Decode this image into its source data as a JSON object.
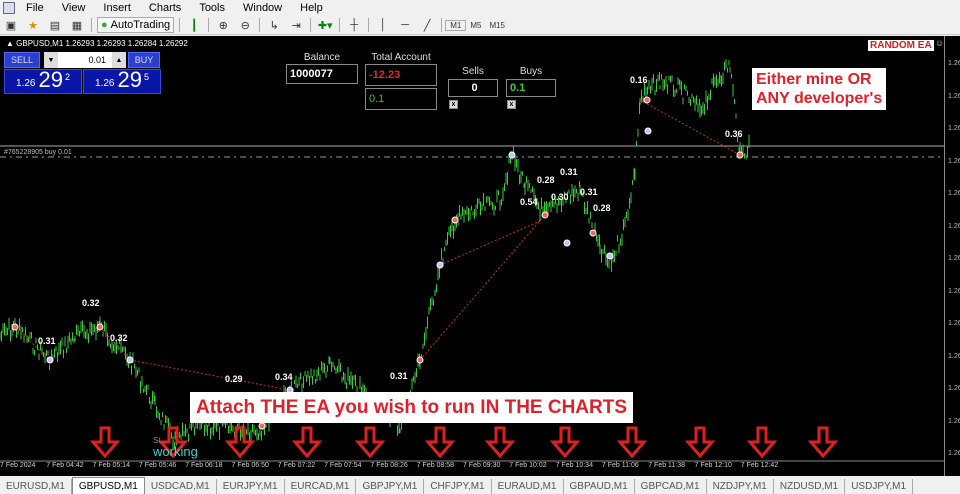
{
  "menu": [
    "File",
    "View",
    "Insert",
    "Charts",
    "Tools",
    "Window",
    "Help"
  ],
  "toolbar": {
    "autotrading": "AutoTrading",
    "timeframes": [
      "M1",
      "M5",
      "M15"
    ]
  },
  "chart": {
    "symbol_line": "▲ GBPUSD,M1  1.26293 1.26293 1.26284 1.26292",
    "sell_label": "SELL",
    "buy_label": "BUY",
    "lot": "0.01",
    "sell_price": {
      "small": "1.26",
      "big": "29",
      "sup": "2"
    },
    "buy_price": {
      "small": "1.26",
      "big": "29",
      "sup": "5"
    },
    "order_line": "#765228905 buy 0.01",
    "badge": "RANDOM EA",
    "note_right": [
      "Either mine OR",
      "ANY developer's"
    ],
    "note_bottom": "Attach THE EA you wish to run IN THE CHARTS",
    "status_small": "St...",
    "status": "working",
    "price_axis_label": "1.26",
    "time_labels": [
      "7 Feb 2024",
      "7 Feb 04:42",
      "7 Feb 05:14",
      "7 Feb 05:46",
      "7 Feb 06:18",
      "7 Feb 06:50",
      "7 Feb 07:22",
      "7 Feb 07:54",
      "7 Feb 08:26",
      "7 Feb 08:58",
      "7 Feb 09:30",
      "7 Feb 10:02",
      "7 Feb 10:34",
      "7 Feb 11:06",
      "7 Feb 11:38",
      "7 Feb 12:10",
      "7 Feb 12:42"
    ],
    "trade_labels": [
      "0.32",
      "0.31",
      "0.32",
      "0.29",
      "0.34",
      "0.31",
      "0.54",
      "0.28",
      "0.31",
      "0.30",
      "0.31",
      "0.28",
      "0.16",
      "0.36"
    ]
  },
  "panel": {
    "balance_label": "Balance",
    "balance": "1000077",
    "total_label": "Total Account",
    "total": "-12.23",
    "total2": "0.1",
    "sells_label": "Sells",
    "sells": "0",
    "buys_label": "Buys",
    "buys": "0.1",
    "close_x": "x"
  },
  "colors": {
    "candles": "#3cc83c",
    "loss": "#ff3030",
    "profit": "#30d030",
    "arrow": "#e02020"
  },
  "tabs": [
    "EURUSD,M1",
    "GBPUSD,M1",
    "USDCAD,M1",
    "EURJPY,M1",
    "EURCAD,M1",
    "GBPJPY,M1",
    "CHFJPY,M1",
    "EURAUD,M1",
    "GBPAUD,M1",
    "GBPCAD,M1",
    "NZDJPY,M1",
    "NZDUSD,M1",
    "USDJPY,M1"
  ],
  "active_tab": "GBPUSD,M1"
}
